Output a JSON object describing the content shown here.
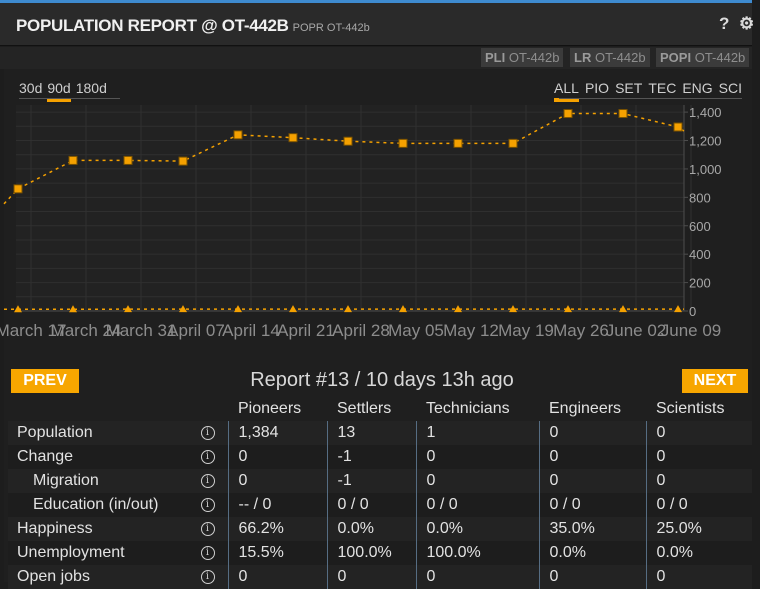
{
  "window": {
    "title": "POPULATION REPORT @ OT-442B",
    "subtitle": "POPR OT-442b",
    "help_icon": "?",
    "settings_icon": "⚙"
  },
  "commands": [
    {
      "code": "PLI",
      "arg": "OT-442b"
    },
    {
      "code": "LR",
      "arg": "OT-442b"
    },
    {
      "code": "POPI",
      "arg": "OT-442b"
    }
  ],
  "range_tabs": [
    {
      "label": "30d",
      "active": false
    },
    {
      "label": "90d",
      "active": true
    },
    {
      "label": "180d",
      "active": false
    }
  ],
  "category_tabs": [
    {
      "label": "ALL",
      "active": true
    },
    {
      "label": "PIO",
      "active": false
    },
    {
      "label": "SET",
      "active": false
    },
    {
      "label": "TEC",
      "active": false
    },
    {
      "label": "ENG",
      "active": false
    },
    {
      "label": "SCI",
      "active": false
    }
  ],
  "chart_data": {
    "type": "line",
    "x_ticks": [
      "March 17",
      "March 24",
      "March 31",
      "April 07",
      "April 14",
      "April 21",
      "April 28",
      "May 05",
      "May 12",
      "May 19",
      "May 26",
      "June 02",
      "June 09"
    ],
    "ylim": [
      0,
      1450
    ],
    "y_ticks": [
      "0",
      "200",
      "400",
      "600",
      "800",
      "1,000",
      "1,200",
      "1,400"
    ],
    "grid": true,
    "series": [
      {
        "color": "#f5a100",
        "marker": "square",
        "values": [
          860,
          1060,
          1060,
          1055,
          1240,
          1220,
          1195,
          1180,
          1180,
          1180,
          1390,
          1390,
          1295
        ]
      },
      {
        "color": "#f5a100",
        "marker": "triangle",
        "values": [
          12,
          12,
          13,
          13,
          13,
          13,
          13,
          13,
          13,
          13,
          13,
          13,
          13
        ]
      }
    ]
  },
  "report": {
    "prev_label": "PREV",
    "next_label": "NEXT",
    "title": "Report #13 / 10 days 13h ago"
  },
  "table": {
    "columns": [
      "Pioneers",
      "Settlers",
      "Technicians",
      "Engineers",
      "Scientists"
    ],
    "rows": [
      {
        "label": "Population",
        "sub": false,
        "values": [
          "1,384",
          "13",
          "1",
          "0",
          "0"
        ]
      },
      {
        "label": "Change",
        "sub": false,
        "values": [
          "0",
          "-1",
          "0",
          "0",
          "0"
        ]
      },
      {
        "label": "Migration",
        "sub": true,
        "values": [
          "0",
          "-1",
          "0",
          "0",
          "0"
        ]
      },
      {
        "label": "Education (in/out)",
        "sub": true,
        "values": [
          "-- / 0",
          "0 / 0",
          "0 / 0",
          "0 / 0",
          "0 / 0"
        ]
      },
      {
        "label": "Happiness",
        "sub": false,
        "values": [
          "66.2%",
          "0.0%",
          "0.0%",
          "35.0%",
          "25.0%"
        ]
      },
      {
        "label": "Unemployment",
        "sub": false,
        "values": [
          "15.5%",
          "100.0%",
          "100.0%",
          "0.0%",
          "0.0%"
        ]
      },
      {
        "label": "Open jobs",
        "sub": false,
        "values": [
          "0",
          "0",
          "0",
          "0",
          "0"
        ]
      }
    ],
    "info_icon": "i"
  }
}
